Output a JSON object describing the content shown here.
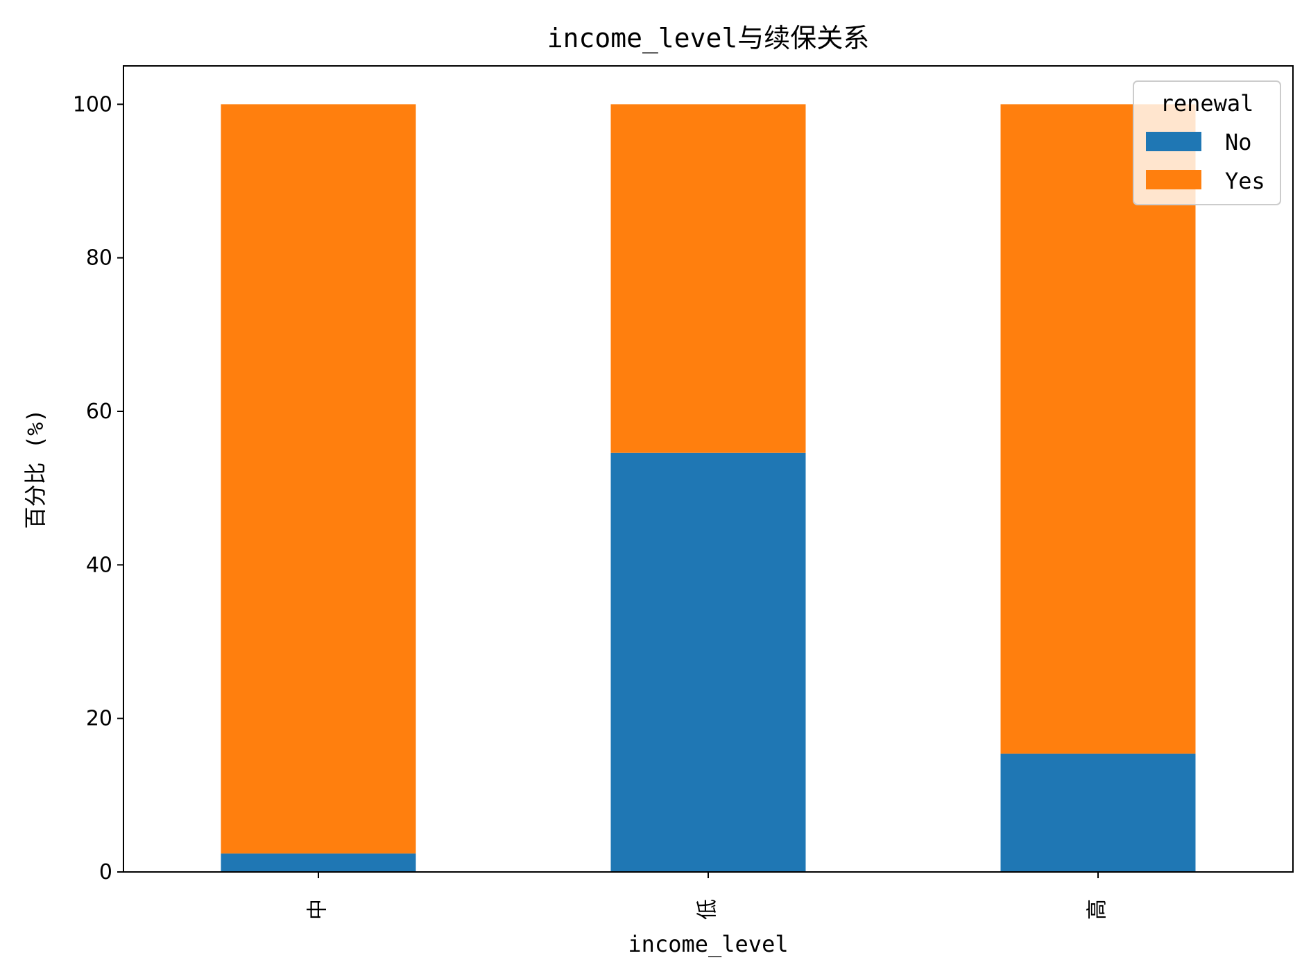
{
  "chart_data": {
    "type": "bar",
    "stacked": true,
    "title": "income_level与续保关系",
    "xlabel": "income_level",
    "ylabel": "百分比 (%)",
    "categories": [
      "中",
      "低",
      "高"
    ],
    "series": [
      {
        "name": "No",
        "values": [
          2.4,
          54.6,
          15.4
        ],
        "color": "#1f77b4"
      },
      {
        "name": "Yes",
        "values": [
          97.6,
          45.4,
          84.6
        ],
        "color": "#ff7f0e"
      }
    ],
    "ylim": [
      0,
      105
    ],
    "yticks": [
      0,
      20,
      40,
      60,
      80,
      100
    ],
    "legend": {
      "title": "renewal",
      "placement": "top-right"
    },
    "grid": false
  }
}
